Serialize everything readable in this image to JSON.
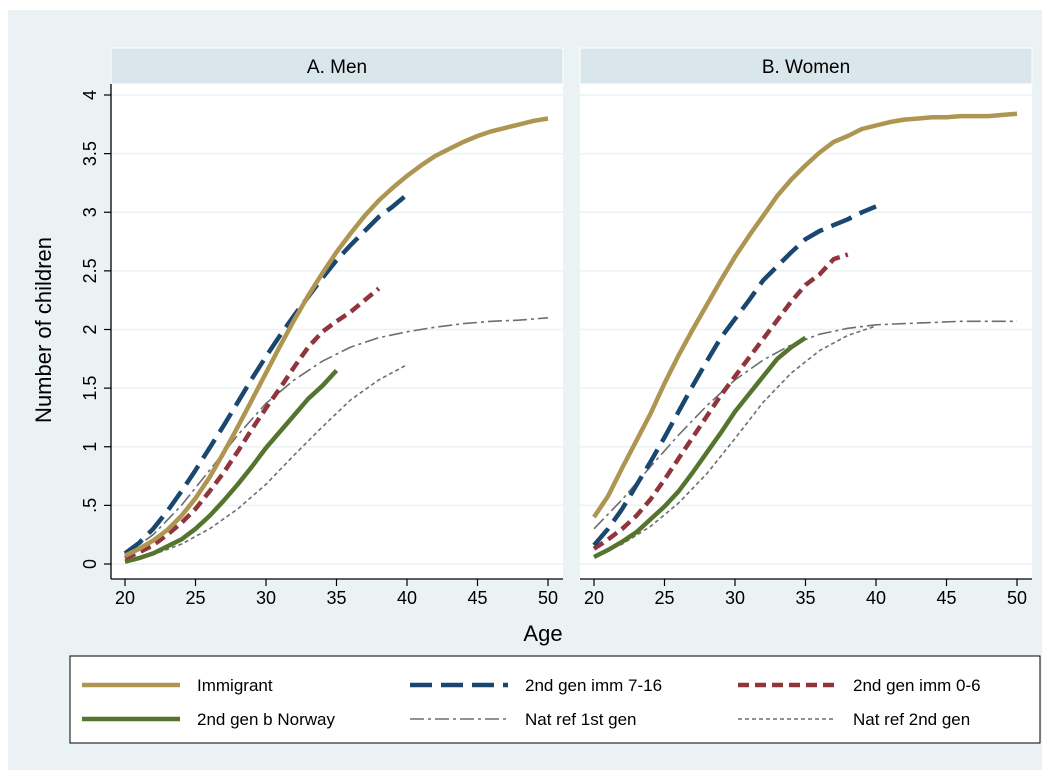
{
  "chart_data": {
    "type": "line",
    "ylabel": "Number of children",
    "xlabel": "Age",
    "xlim": [
      20,
      50
    ],
    "ylim": [
      0,
      4
    ],
    "xticks": [
      "20",
      "25",
      "30",
      "35",
      "40",
      "45",
      "50"
    ],
    "yticks": [
      "0",
      ".5",
      "1",
      "1.5",
      "2",
      "2.5",
      "3",
      "3.5",
      "4"
    ],
    "grid": true,
    "legend_position": "bottom",
    "colors": {
      "outer_background": "#EAF2F3",
      "panel_header": "#D9E6EB",
      "grid": "#EAF2F3",
      "immigrant": "#AF9552",
      "imm_7_16": "#1A476F",
      "imm_0_6": "#90353B",
      "born_norway": "#55752F",
      "nat_ref_1st": "#6E6E6E",
      "nat_ref_2nd": "#6E6E6E"
    },
    "legend": [
      {
        "key": "immigrant",
        "label": "Immigrant"
      },
      {
        "key": "imm_7_16",
        "label": "2nd gen imm 7-16"
      },
      {
        "key": "imm_0_6",
        "label": "2nd gen imm 0-6"
      },
      {
        "key": "born_norway",
        "label": "2nd gen b Norway"
      },
      {
        "key": "nat_ref_1st",
        "label": "Nat ref 1st gen"
      },
      {
        "key": "nat_ref_2nd",
        "label": "Nat ref 2nd gen"
      }
    ],
    "panels": [
      {
        "title": "A. Men",
        "series": [
          {
            "key": "nat_ref_1st",
            "x": [
              20,
              22,
              24,
              26,
              28,
              30,
              32,
              34,
              36,
              38,
              40,
              42,
              44,
              46,
              48,
              50
            ],
            "y": [
              0.08,
              0.25,
              0.5,
              0.8,
              1.1,
              1.37,
              1.57,
              1.73,
              1.85,
              1.93,
              1.98,
              2.02,
              2.05,
              2.07,
              2.08,
              2.1
            ]
          },
          {
            "key": "nat_ref_2nd",
            "x": [
              20,
              22,
              24,
              26,
              28,
              30,
              32,
              34,
              36,
              38,
              40
            ],
            "y": [
              0.02,
              0.08,
              0.17,
              0.3,
              0.47,
              0.68,
              0.93,
              1.17,
              1.4,
              1.57,
              1.7
            ]
          },
          {
            "key": "born_norway",
            "x": [
              20,
              21,
              22,
              23,
              24,
              25,
              26,
              27,
              28,
              29,
              30,
              31,
              32,
              33,
              34,
              35
            ],
            "y": [
              0.02,
              0.05,
              0.09,
              0.15,
              0.21,
              0.3,
              0.41,
              0.54,
              0.68,
              0.83,
              0.99,
              1.13,
              1.27,
              1.41,
              1.52,
              1.65
            ]
          },
          {
            "key": "imm_0_6",
            "x": [
              20,
              21,
              22,
              23,
              24,
              25,
              26,
              27,
              28,
              29,
              30,
              31,
              32,
              33,
              34,
              35,
              36,
              37,
              38
            ],
            "y": [
              0.05,
              0.1,
              0.16,
              0.25,
              0.35,
              0.47,
              0.62,
              0.78,
              0.96,
              1.15,
              1.33,
              1.5,
              1.68,
              1.85,
              1.98,
              2.07,
              2.15,
              2.25,
              2.35
            ]
          },
          {
            "key": "imm_7_16",
            "x": [
              20,
              21,
              22,
              23,
              24,
              25,
              26,
              27,
              28,
              29,
              30,
              31,
              32,
              33,
              34,
              35,
              36,
              37,
              38,
              39,
              40
            ],
            "y": [
              0.09,
              0.18,
              0.3,
              0.45,
              0.62,
              0.8,
              0.99,
              1.18,
              1.38,
              1.58,
              1.77,
              1.95,
              2.12,
              2.28,
              2.44,
              2.59,
              2.72,
              2.84,
              2.96,
              3.05,
              3.15
            ]
          },
          {
            "key": "immigrant",
            "x": [
              20,
              21,
              22,
              23,
              24,
              25,
              26,
              27,
              28,
              29,
              30,
              31,
              32,
              33,
              34,
              35,
              36,
              37,
              38,
              39,
              40,
              41,
              42,
              43,
              44,
              45,
              46,
              47,
              48,
              49,
              50
            ],
            "y": [
              0.07,
              0.13,
              0.2,
              0.29,
              0.41,
              0.56,
              0.74,
              0.95,
              1.17,
              1.4,
              1.63,
              1.86,
              2.08,
              2.29,
              2.48,
              2.66,
              2.82,
              2.97,
              3.1,
              3.21,
              3.31,
              3.4,
              3.48,
              3.54,
              3.6,
              3.65,
              3.69,
              3.72,
              3.75,
              3.78,
              3.8
            ]
          }
        ]
      },
      {
        "title": "B. Women",
        "series": [
          {
            "key": "nat_ref_1st",
            "x": [
              20,
              22,
              24,
              26,
              28,
              30,
              32,
              34,
              36,
              38,
              40,
              42,
              44,
              46,
              48,
              50
            ],
            "y": [
              0.3,
              0.55,
              0.83,
              1.1,
              1.35,
              1.57,
              1.74,
              1.87,
              1.96,
              2.01,
              2.04,
              2.05,
              2.06,
              2.07,
              2.07,
              2.07
            ]
          },
          {
            "key": "nat_ref_2nd",
            "x": [
              20,
              22,
              24,
              26,
              28,
              30,
              32,
              34,
              36,
              38,
              40
            ],
            "y": [
              0.07,
              0.17,
              0.32,
              0.52,
              0.77,
              1.07,
              1.38,
              1.63,
              1.82,
              1.95,
              2.03
            ]
          },
          {
            "key": "born_norway",
            "x": [
              20,
              21,
              22,
              23,
              24,
              25,
              26,
              27,
              28,
              29,
              30,
              31,
              32,
              33,
              34,
              35
            ],
            "y": [
              0.06,
              0.12,
              0.19,
              0.27,
              0.38,
              0.49,
              0.62,
              0.78,
              0.95,
              1.12,
              1.3,
              1.45,
              1.6,
              1.75,
              1.85,
              1.93
            ]
          },
          {
            "key": "imm_0_6",
            "x": [
              20,
              21,
              22,
              23,
              24,
              25,
              26,
              27,
              28,
              29,
              30,
              31,
              32,
              33,
              34,
              35,
              36,
              37,
              38
            ],
            "y": [
              0.13,
              0.21,
              0.3,
              0.41,
              0.55,
              0.72,
              0.9,
              1.08,
              1.26,
              1.44,
              1.6,
              1.76,
              1.92,
              2.08,
              2.24,
              2.38,
              2.47,
              2.6,
              2.64
            ]
          },
          {
            "key": "imm_7_16",
            "x": [
              20,
              21,
              22,
              23,
              24,
              25,
              26,
              27,
              28,
              29,
              30,
              31,
              32,
              33,
              34,
              35,
              36,
              37,
              38,
              39,
              40
            ],
            "y": [
              0.16,
              0.3,
              0.47,
              0.67,
              0.87,
              1.08,
              1.3,
              1.52,
              1.73,
              1.93,
              2.09,
              2.25,
              2.42,
              2.54,
              2.66,
              2.77,
              2.84,
              2.89,
              2.94,
              3.0,
              3.05
            ]
          },
          {
            "key": "immigrant",
            "x": [
              20,
              21,
              22,
              23,
              24,
              25,
              26,
              27,
              28,
              29,
              30,
              31,
              32,
              33,
              34,
              35,
              36,
              37,
              38,
              39,
              40,
              41,
              42,
              43,
              44,
              45,
              46,
              47,
              48,
              49,
              50
            ],
            "y": [
              0.4,
              0.58,
              0.82,
              1.05,
              1.28,
              1.54,
              1.78,
              2.0,
              2.21,
              2.42,
              2.62,
              2.8,
              2.97,
              3.14,
              3.28,
              3.4,
              3.51,
              3.6,
              3.65,
              3.71,
              3.74,
              3.77,
              3.79,
              3.8,
              3.81,
              3.81,
              3.82,
              3.82,
              3.82,
              3.83,
              3.84
            ]
          }
        ]
      }
    ]
  }
}
